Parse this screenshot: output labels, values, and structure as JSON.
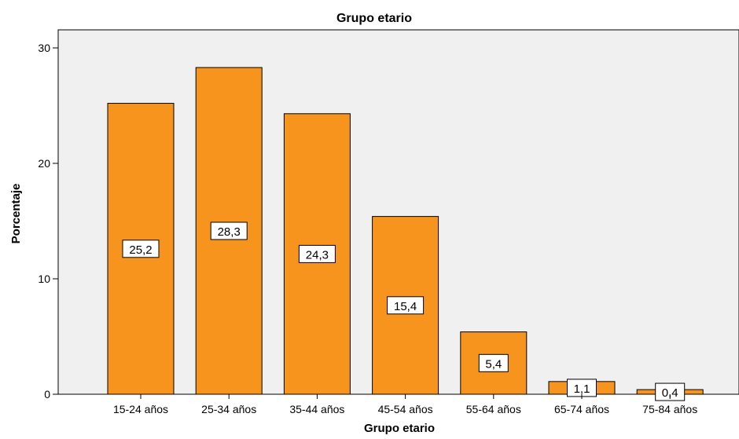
{
  "chart_data": {
    "type": "bar",
    "title": "Grupo etario",
    "xlabel": "Grupo etario",
    "ylabel": "Porcentaje",
    "categories": [
      "15-24 años",
      "25-34 años",
      "35-44 años",
      "45-54 años",
      "55-64 años",
      "65-74 años",
      "75-84 años"
    ],
    "values": [
      25.2,
      28.3,
      24.3,
      15.4,
      5.4,
      1.1,
      0.4
    ],
    "value_labels": [
      "25,2",
      "28,3",
      "24,3",
      "15,4",
      "5,4",
      "1,1",
      "0,4"
    ],
    "yticks": [
      0,
      10,
      20,
      30
    ],
    "ylim": [
      0,
      30
    ],
    "grid": false,
    "legend": "none",
    "bar_color": "#F7941D",
    "bar_edge_color": "#000000",
    "plot_background": "#F0F0F0"
  }
}
